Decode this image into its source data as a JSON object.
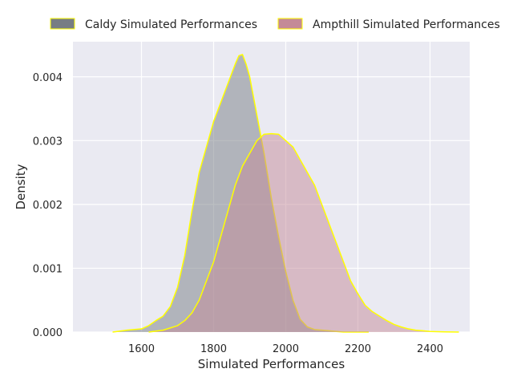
{
  "chart_data": {
    "type": "area",
    "title": "",
    "xlabel": "Simulated Performances",
    "ylabel": "Density",
    "xlim": [
      1410,
      2510
    ],
    "ylim": [
      0,
      0.00455
    ],
    "xticks": [
      1600,
      1800,
      2000,
      2200,
      2400
    ],
    "xtick_labels": [
      "1600",
      "1800",
      "2000",
      "2200",
      "2400"
    ],
    "yticks": [
      0,
      0.001,
      0.002,
      0.003,
      0.004
    ],
    "ytick_labels": [
      "0.000",
      "0.001",
      "0.002",
      "0.003",
      "0.004"
    ],
    "grid": true,
    "legend_position": "top, above plot",
    "series": [
      {
        "name": "Caldy Simulated Performances",
        "fill_color": "#777d84",
        "edge_color": "#ffff00",
        "x": [
          1520,
          1560,
          1600,
          1620,
          1640,
          1660,
          1680,
          1700,
          1720,
          1740,
          1760,
          1780,
          1800,
          1820,
          1840,
          1860,
          1870,
          1880,
          1890,
          1900,
          1920,
          1940,
          1960,
          1980,
          2000,
          2020,
          2040,
          2060,
          2080,
          2100,
          2120,
          2140,
          2160,
          2180,
          2200,
          2230
        ],
        "y": [
          0.0,
          3e-05,
          5e-05,
          0.0001,
          0.00018,
          0.00025,
          0.0004,
          0.0007,
          0.0012,
          0.0019,
          0.0025,
          0.0029,
          0.0033,
          0.0036,
          0.0039,
          0.0042,
          0.00433,
          0.00435,
          0.0042,
          0.004,
          0.0034,
          0.0028,
          0.0021,
          0.0015,
          0.00095,
          0.0005,
          0.0002,
          8e-05,
          4e-05,
          3e-05,
          2e-05,
          1e-05,
          0.0,
          0.0,
          0.0,
          0.0
        ]
      },
      {
        "name": "Ampthill Simulated Performances",
        "fill_color": "#c48a97",
        "edge_color": "#ffff00",
        "x": [
          1620,
          1660,
          1700,
          1720,
          1740,
          1760,
          1780,
          1800,
          1820,
          1840,
          1860,
          1880,
          1900,
          1920,
          1940,
          1960,
          1980,
          2000,
          2020,
          2040,
          2060,
          2080,
          2100,
          2120,
          2140,
          2160,
          2180,
          2200,
          2220,
          2240,
          2260,
          2280,
          2300,
          2320,
          2340,
          2360,
          2380,
          2400,
          2440,
          2480
        ],
        "y": [
          0.0,
          3e-05,
          0.0001,
          0.00018,
          0.0003,
          0.0005,
          0.0008,
          0.0011,
          0.0015,
          0.0019,
          0.0023,
          0.0026,
          0.0028,
          0.003,
          0.0031,
          0.00311,
          0.0031,
          0.003,
          0.0029,
          0.0027,
          0.0025,
          0.0023,
          0.002,
          0.0017,
          0.0014,
          0.0011,
          0.0008,
          0.0006,
          0.00042,
          0.00032,
          0.00025,
          0.00018,
          0.00012,
          8e-05,
          5e-05,
          3e-05,
          2e-05,
          1e-05,
          3e-06,
          0.0
        ]
      }
    ]
  }
}
